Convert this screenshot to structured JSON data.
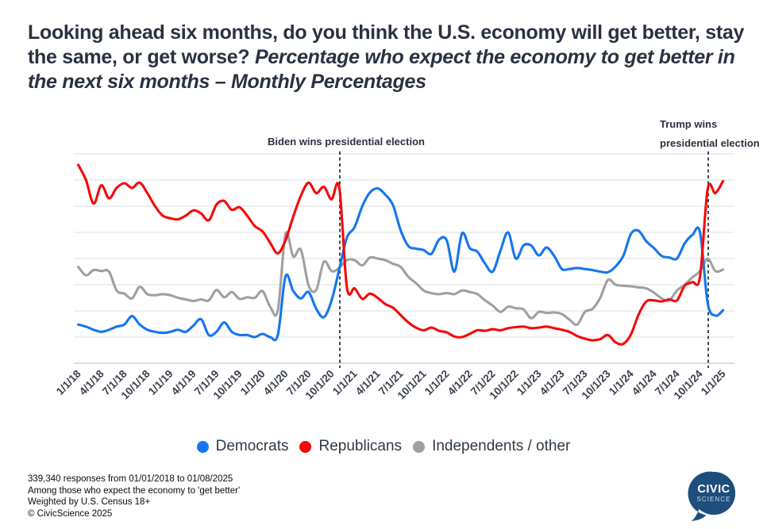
{
  "title": {
    "part1": "Looking ahead six months, do you think the U.S. economy will get better, stay the same, or get worse? ",
    "part2_italic": "Percentage who expect the economy to get better in the next six months – Monthly Percentages"
  },
  "annotations": {
    "biden": {
      "label": "Biden wins presidential election",
      "month_index": 34.07
    },
    "trump": {
      "label_line1": "Trump wins",
      "label_line2": "presidential election",
      "month_index": 82.07
    }
  },
  "legend": [
    {
      "label": "Democrats",
      "color": "#1476f0"
    },
    {
      "label": "Republicans",
      "color": "#f70808"
    },
    {
      "label": "Independents / other",
      "color": "#a0a0a0"
    }
  ],
  "footer": {
    "lines": [
      "339,340 responses from 01/01/2018 to 01/08/2025",
      "Among those who expect the economy to 'get better'",
      "Weighted by U.S. Census 18+",
      "© CivicScience 2025"
    ]
  },
  "logo": {
    "line1": "CIVIC",
    "line2": "SCIENCE",
    "color": "#1d4e7c"
  },
  "chart_data": {
    "type": "line",
    "title": "Percentage who expect the economy to get better in the next six months - Monthly Percentages",
    "x_unit": "monthly points from 1/2018 to 1/2025 (85 points per series)",
    "x_tick_labels": [
      "1/1/18",
      "4/1/18",
      "7/1/18",
      "10/1/18",
      "1/1/19",
      "4/1/19",
      "7/1/19",
      "10/1/19",
      "1/1/20",
      "4/1/20",
      "7/1/20",
      "10/1/20",
      "1/1/21",
      "4/1/21",
      "7/1/21",
      "10/1/21",
      "1/1/22",
      "4/1/22",
      "7/1/22",
      "10/1/22",
      "1/1/23",
      "4/1/23",
      "7/1/23",
      "10/1/23",
      "1/1/24",
      "4/1/24",
      "7/1/24",
      "10/1/24",
      "1/1/25"
    ],
    "y_axis": {
      "tick_labels_visible": false,
      "gridlines": 9,
      "assumed_range": [
        15,
        55
      ],
      "assumed_step_per_gridline": 5
    },
    "legend_position": "bottom-center",
    "grid": true,
    "event_lines": [
      {
        "label": "Biden wins presidential election",
        "month_index": 34.07
      },
      {
        "label": "Trump wins presidential election",
        "month_index": 82.07
      }
    ],
    "series": [
      {
        "name": "Democrats",
        "color": "#1476f0",
        "values": [
          22.4,
          22.0,
          21.4,
          21.0,
          21.4,
          22.0,
          22.4,
          24.0,
          22.4,
          21.4,
          21.0,
          20.8,
          21.0,
          21.4,
          21.0,
          22.2,
          23.4,
          20.4,
          21.0,
          22.8,
          21.0,
          20.4,
          20.4,
          20.0,
          20.6,
          20.0,
          20.4,
          31.6,
          28.8,
          27.4,
          28.6,
          25.4,
          23.8,
          27.0,
          33.0,
          39.0,
          41.0,
          45.0,
          47.6,
          48.4,
          47.2,
          45.2,
          40.4,
          37.4,
          36.9,
          36.6,
          35.9,
          38.6,
          38.5,
          32.5,
          39.8,
          37.0,
          36.3,
          34.0,
          32.5,
          36.5,
          40.0,
          35.0,
          37.5,
          37.5,
          35.6,
          37.1,
          35.5,
          33.0,
          33.0,
          33.2,
          33.0,
          32.8,
          32.5,
          32.4,
          33.5,
          35.5,
          39.7,
          40.3,
          38.3,
          37.0,
          35.5,
          35.2,
          35.0,
          37.9,
          39.5,
          40.0,
          26.5,
          24.1,
          25.1
        ]
      },
      {
        "name": "Republicans",
        "color": "#f70808",
        "values": [
          52.9,
          50.0,
          45.5,
          49.0,
          46.5,
          48.5,
          49.4,
          48.5,
          49.5,
          47.5,
          45.0,
          43.2,
          42.7,
          42.5,
          43.2,
          44.2,
          43.6,
          42.3,
          45.3,
          46.0,
          44.3,
          44.8,
          43.2,
          41.2,
          40.2,
          38.0,
          36.0,
          38.5,
          43.0,
          47.0,
          49.5,
          47.5,
          48.7,
          46.3,
          48.6,
          29.5,
          29.3,
          27.3,
          28.3,
          27.5,
          26.3,
          25.6,
          24.2,
          22.8,
          21.8,
          21.3,
          21.8,
          21.2,
          20.9,
          20.1,
          20.0,
          20.6,
          21.3,
          21.2,
          21.5,
          21.3,
          21.7,
          21.9,
          22.0,
          21.7,
          21.8,
          22.0,
          21.7,
          21.4,
          21.0,
          20.2,
          19.7,
          19.4,
          19.6,
          20.4,
          19.0,
          18.7,
          20.5,
          24.3,
          26.8,
          27.0,
          26.8,
          27.2,
          27.0,
          29.8,
          30.5,
          31.5,
          48.3,
          47.5,
          49.8
        ]
      },
      {
        "name": "Independents / other",
        "color": "#a0a0a0",
        "values": [
          33.4,
          31.8,
          32.8,
          32.6,
          32.5,
          28.9,
          28.3,
          27.4,
          29.6,
          28.2,
          28.0,
          28.2,
          28.0,
          27.5,
          27.2,
          26.9,
          27.2,
          27.0,
          29.0,
          27.6,
          28.6,
          27.3,
          27.6,
          27.5,
          28.8,
          25.8,
          25.1,
          39.7,
          35.4,
          36.7,
          29.9,
          29.0,
          34.4,
          32.6,
          33.2,
          34.7,
          34.7,
          33.7,
          35.2,
          35.0,
          34.7,
          34.0,
          33.4,
          31.5,
          30.3,
          28.9,
          28.4,
          28.2,
          28.4,
          28.2,
          28.9,
          28.6,
          28.2,
          27.0,
          26.0,
          24.8,
          25.8,
          25.5,
          25.3,
          23.6,
          24.8,
          24.6,
          24.7,
          24.4,
          23.3,
          22.4,
          24.8,
          25.4,
          27.5,
          30.9,
          30.0,
          29.8,
          29.7,
          29.5,
          29.3,
          28.5,
          27.4,
          27.0,
          28.9,
          30.0,
          31.4,
          32.6,
          35.0,
          32.6,
          32.9
        ]
      }
    ]
  }
}
